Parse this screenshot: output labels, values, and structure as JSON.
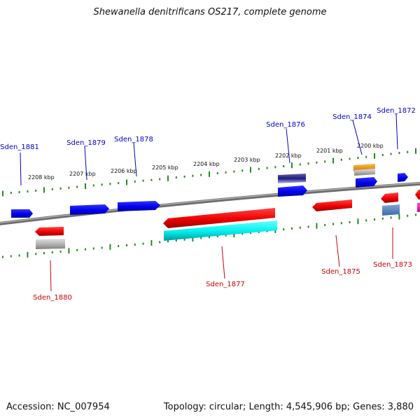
{
  "title": "Shewanella denitrificans OS217, complete genome",
  "footer": {
    "accession": "Accession: NC_007954",
    "topology": "Topology: circular; Length: 4,545,906 bp; Genes: 3,880"
  },
  "ruler_labels": [
    "2208 kbp",
    "2207 kbp",
    "2206 kbp",
    "2205 kbp",
    "2204 kbp",
    "2203 kbp",
    "2202 kbp",
    "2201 kbp",
    "2200 kbp"
  ],
  "genes_top": [
    {
      "name": "Sden_1881",
      "color": "#0000cc"
    },
    {
      "name": "Sden_1879",
      "color": "#0000cc"
    },
    {
      "name": "Sden_1878",
      "color": "#0000cc"
    },
    {
      "name": "Sden_1876",
      "color": "#0000cc"
    },
    {
      "name": "Sden_1874",
      "color": "#0000cc"
    },
    {
      "name": "Sden_1872",
      "color": "#0000cc"
    }
  ],
  "genes_bottom": [
    {
      "name": "Sden_1880",
      "color": "#cc0000"
    },
    {
      "name": "Sden_1877",
      "color": "#cc0000"
    },
    {
      "name": "Sden_1875",
      "color": "#cc0000"
    },
    {
      "name": "Sden_1873",
      "color": "#cc0000"
    }
  ],
  "colors": {
    "forward": "#0000ff",
    "reverse": "#ff0000",
    "rna": "#00ffff",
    "gray": "#b0b0b0",
    "orange": "#ff9900",
    "navy": "#1a1a80",
    "steel": "#4f81bd",
    "magenta": "#ff00aa",
    "ruler": "#228b22",
    "backbone": "#707070"
  }
}
